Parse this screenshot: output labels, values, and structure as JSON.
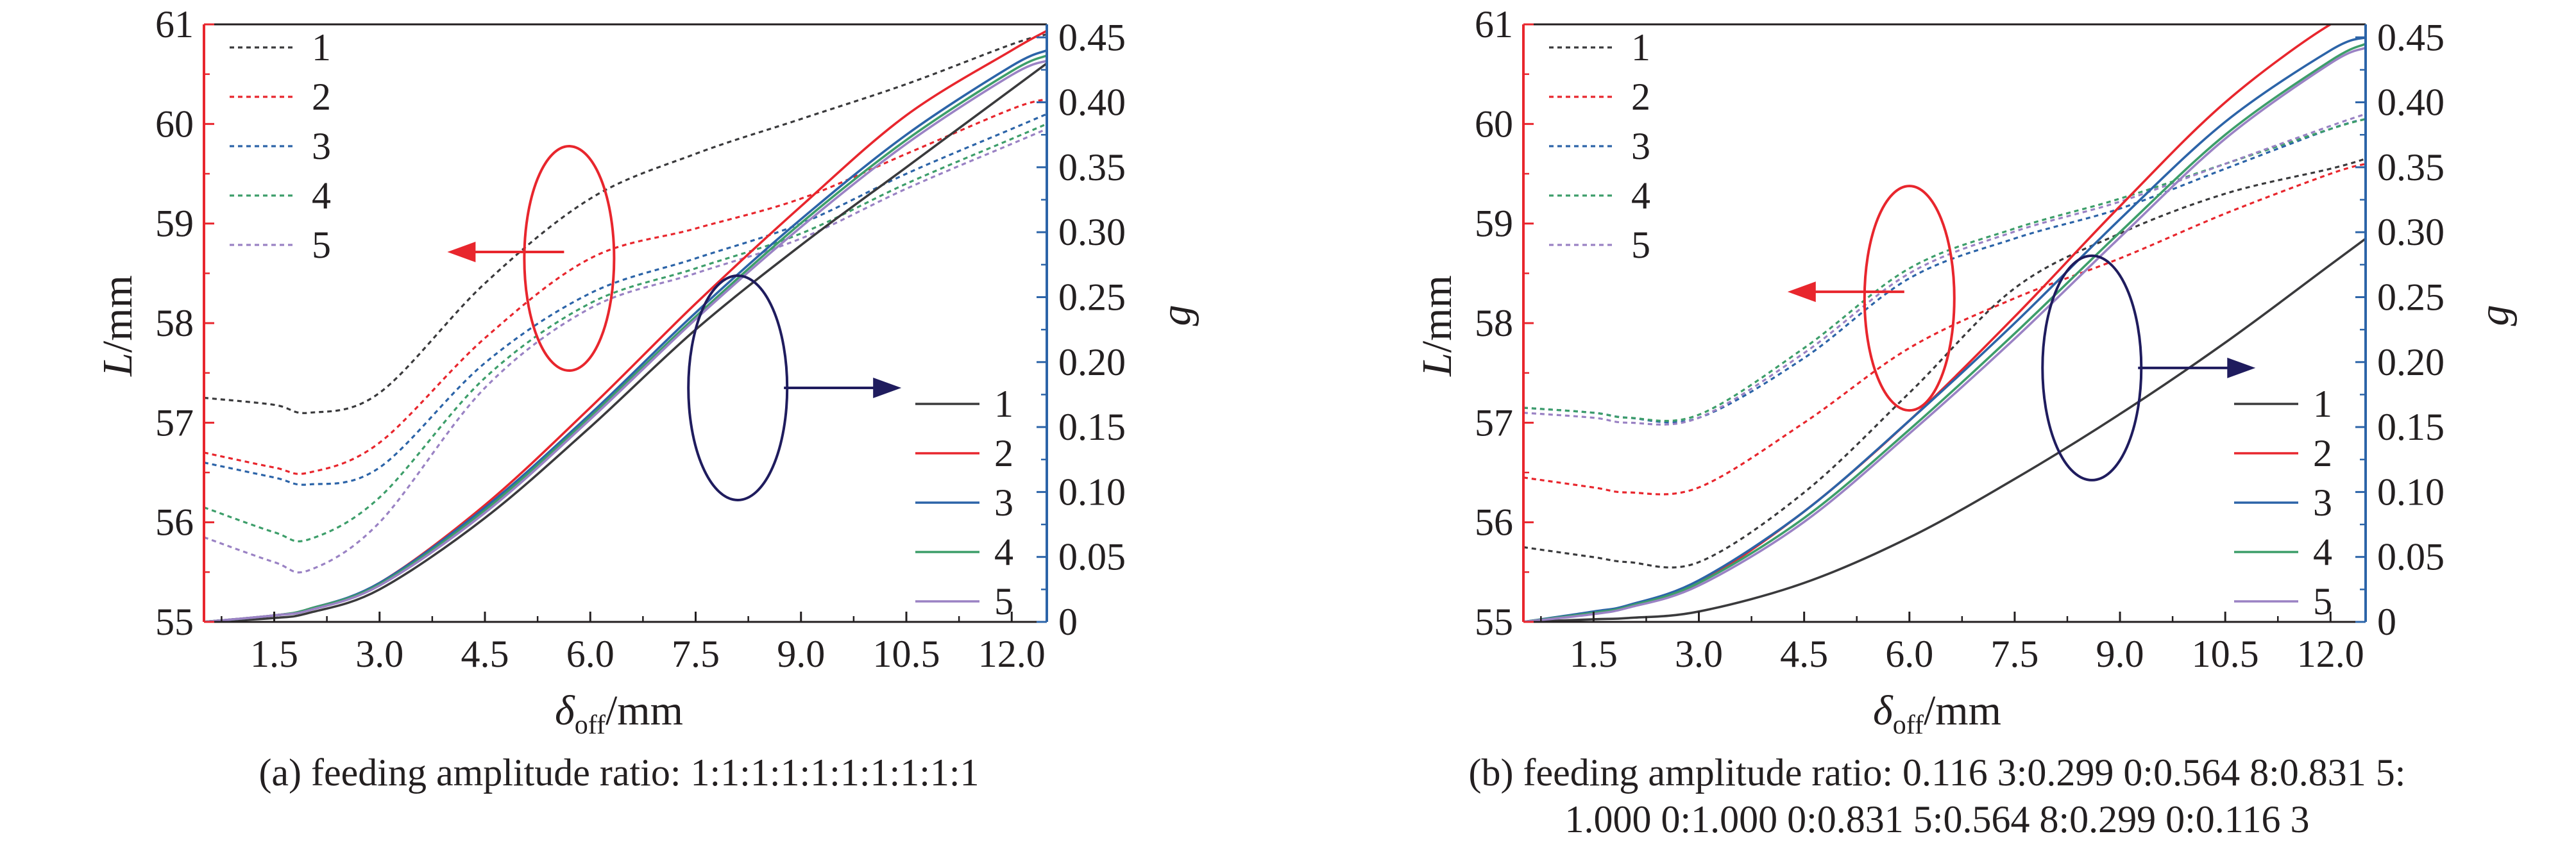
{
  "colors": {
    "s1": "#3a3a3c",
    "s2": "#e8262d",
    "s3": "#2c64a8",
    "s4": "#3d9e6a",
    "s5": "#9a82c4",
    "left_axis": "#e8262d",
    "right_axis": "#2c64a8",
    "ellipse_left": "#e8262d",
    "ellipse_right": "#1f1c5e"
  },
  "chart_data": [
    {
      "type": "line",
      "caption": "(a) feeding amplitude ratio: 1:1:1:1:1:1:1:1:1:1",
      "xlabel_main": "δ",
      "xlabel_sub": "off",
      "xlabel_unit": "/mm",
      "ylabel_left_main": "L",
      "ylabel_left_unit": "/mm",
      "ylabel_right": "g",
      "xlim": [
        0.5,
        12.5
      ],
      "ylim_left": [
        55,
        61
      ],
      "ylim_right": [
        0,
        0.46
      ],
      "xticks": [
        "1.5",
        "3.0",
        "4.5",
        "6.0",
        "7.5",
        "9.0",
        "10.5",
        "12.0"
      ],
      "yticks_left": [
        "55",
        "56",
        "57",
        "58",
        "59",
        "60",
        "61"
      ],
      "yticks_right": [
        "0",
        "0.05",
        "0.10",
        "0.15",
        "0.20",
        "0.25",
        "0.30",
        "0.35",
        "0.40",
        "0.45"
      ],
      "legend_dashed": [
        "1",
        "2",
        "3",
        "4",
        "5"
      ],
      "legend_solid": [
        "1",
        "2",
        "3",
        "4",
        "5"
      ],
      "x": [
        0.5,
        1.5,
        2.0,
        3.0,
        4.5,
        6.0,
        7.5,
        9.0,
        10.5,
        12.0,
        12.5
      ],
      "series_L": [
        {
          "name": "1",
          "values": [
            57.25,
            57.18,
            57.1,
            57.3,
            58.4,
            59.25,
            59.7,
            60.05,
            60.4,
            60.8,
            60.9
          ]
        },
        {
          "name": "2",
          "values": [
            56.7,
            56.55,
            56.5,
            56.8,
            57.85,
            58.65,
            58.95,
            59.25,
            59.7,
            60.15,
            60.25
          ]
        },
        {
          "name": "3",
          "values": [
            56.6,
            56.45,
            56.38,
            56.55,
            57.6,
            58.3,
            58.65,
            59.0,
            59.5,
            59.95,
            60.1
          ]
        },
        {
          "name": "4",
          "values": [
            56.15,
            55.9,
            55.83,
            56.25,
            57.45,
            58.2,
            58.55,
            58.9,
            59.4,
            59.85,
            60.0
          ]
        },
        {
          "name": "5",
          "values": [
            55.85,
            55.6,
            55.52,
            56.0,
            57.35,
            58.15,
            58.5,
            58.85,
            59.35,
            59.8,
            59.95
          ]
        }
      ],
      "series_g": [
        {
          "name": "1",
          "values": [
            0.0,
            0.003,
            0.007,
            0.025,
            0.08,
            0.15,
            0.225,
            0.29,
            0.35,
            0.41,
            0.43
          ]
        },
        {
          "name": "2",
          "values": [
            0.0,
            0.005,
            0.01,
            0.03,
            0.09,
            0.165,
            0.245,
            0.32,
            0.39,
            0.44,
            0.455
          ]
        },
        {
          "name": "3",
          "values": [
            0.0,
            0.005,
            0.01,
            0.03,
            0.088,
            0.16,
            0.238,
            0.31,
            0.375,
            0.428,
            0.44
          ]
        },
        {
          "name": "4",
          "values": [
            0.0,
            0.005,
            0.01,
            0.029,
            0.086,
            0.158,
            0.235,
            0.307,
            0.371,
            0.424,
            0.436
          ]
        },
        {
          "name": "5",
          "values": [
            0.0,
            0.005,
            0.009,
            0.028,
            0.084,
            0.156,
            0.233,
            0.304,
            0.368,
            0.421,
            0.432
          ]
        }
      ],
      "ellipse_left_center": [
        5.7,
        58.65
      ],
      "ellipse_right_center": [
        8.1,
        57.35
      ]
    },
    {
      "type": "line",
      "caption_line1": "(b) feeding amplitude ratio: 0.116 3:0.299 0:0.564 8:0.831 5:",
      "caption_line2": "1.000 0:1.000 0:0.831 5:0.564 8:0.299 0:0.116 3",
      "xlabel_main": "δ",
      "xlabel_sub": "off",
      "xlabel_unit": "/mm",
      "ylabel_left_main": "L",
      "ylabel_left_unit": "/mm",
      "ylabel_right": "g",
      "xlim": [
        0.5,
        12.5
      ],
      "ylim_left": [
        55,
        61
      ],
      "ylim_right": [
        0,
        0.46
      ],
      "xticks": [
        "1.5",
        "3.0",
        "4.5",
        "6.0",
        "7.5",
        "9.0",
        "10.5",
        "12.0"
      ],
      "yticks_left": [
        "55",
        "56",
        "57",
        "58",
        "59",
        "60",
        "61"
      ],
      "yticks_right": [
        "0",
        "0.05",
        "0.10",
        "0.15",
        "0.20",
        "0.25",
        "0.30",
        "0.35",
        "0.40",
        "0.45"
      ],
      "legend_dashed": [
        "1",
        "2",
        "3",
        "4",
        "5"
      ],
      "legend_solid": [
        "1",
        "2",
        "3",
        "4",
        "5"
      ],
      "x": [
        0.5,
        1.5,
        2.0,
        3.0,
        4.5,
        6.0,
        7.5,
        9.0,
        10.5,
        12.0,
        12.5
      ],
      "series_L": [
        {
          "name": "1",
          "values": [
            55.75,
            55.65,
            55.6,
            55.6,
            56.3,
            57.3,
            58.35,
            58.9,
            59.3,
            59.55,
            59.65
          ]
        },
        {
          "name": "2",
          "values": [
            56.45,
            56.35,
            56.3,
            56.35,
            57.0,
            57.75,
            58.25,
            58.65,
            59.1,
            59.5,
            59.6
          ]
        },
        {
          "name": "3",
          "values": [
            57.15,
            57.1,
            57.05,
            57.05,
            57.65,
            58.45,
            58.85,
            59.15,
            59.55,
            59.95,
            60.05
          ]
        },
        {
          "name": "4",
          "values": [
            57.15,
            57.1,
            57.05,
            57.08,
            57.75,
            58.55,
            58.95,
            59.25,
            59.6,
            59.95,
            60.05
          ]
        },
        {
          "name": "5",
          "values": [
            57.1,
            57.05,
            57.0,
            57.05,
            57.7,
            58.5,
            58.92,
            59.22,
            59.6,
            59.98,
            60.1
          ]
        }
      ],
      "series_g": [
        {
          "name": "1",
          "values": [
            0.0,
            0.002,
            0.003,
            0.008,
            0.03,
            0.065,
            0.11,
            0.16,
            0.215,
            0.275,
            0.295
          ]
        },
        {
          "name": "2",
          "values": [
            0.0,
            0.007,
            0.012,
            0.03,
            0.085,
            0.155,
            0.235,
            0.32,
            0.4,
            0.46,
            0.465
          ]
        },
        {
          "name": "3",
          "values": [
            0.0,
            0.008,
            0.013,
            0.032,
            0.085,
            0.155,
            0.23,
            0.31,
            0.385,
            0.44,
            0.45
          ]
        },
        {
          "name": "4",
          "values": [
            0.0,
            0.007,
            0.012,
            0.03,
            0.08,
            0.148,
            0.222,
            0.3,
            0.375,
            0.432,
            0.445
          ]
        },
        {
          "name": "5",
          "values": [
            0.0,
            0.006,
            0.011,
            0.028,
            0.077,
            0.145,
            0.218,
            0.296,
            0.372,
            0.43,
            0.442
          ]
        }
      ],
      "ellipse_left_center": [
        6.0,
        58.25
      ],
      "ellipse_right_center": [
        8.6,
        57.55
      ]
    }
  ]
}
